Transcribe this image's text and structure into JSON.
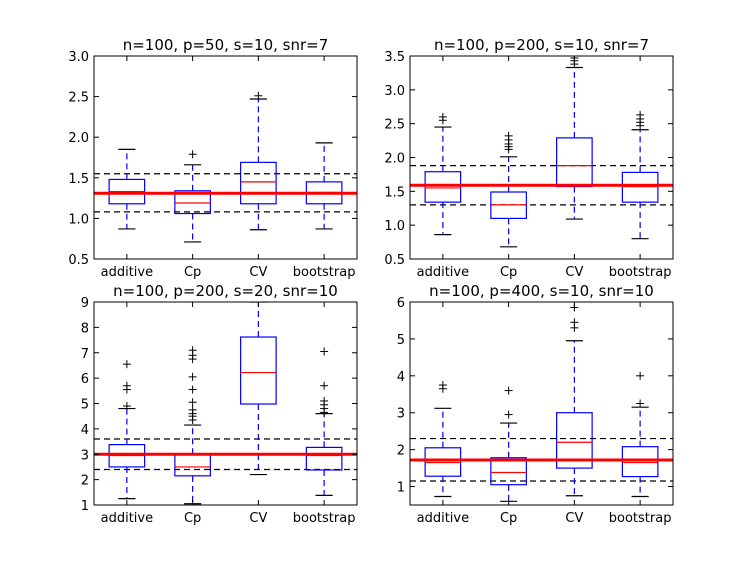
{
  "chart_data": [
    {
      "type": "box",
      "title": "n=100, p=50, s=10, snr=7",
      "categories": [
        "additive",
        "Cp",
        "CV",
        "bootstrap"
      ],
      "ylim": [
        0.5,
        3.0
      ],
      "yticks": [
        "0.5",
        "1.0",
        "1.5",
        "2.0",
        "2.5",
        "3.0"
      ],
      "ytick_values": [
        0.5,
        1.0,
        1.5,
        2.0,
        2.5,
        3.0
      ],
      "reference_line": 1.31,
      "band": [
        1.08,
        1.55
      ],
      "boxes": [
        {
          "q1": 1.18,
          "median": 1.33,
          "q3": 1.48,
          "whisker_low": 0.87,
          "whisker_high": 1.85,
          "outliers": []
        },
        {
          "q1": 1.06,
          "median": 1.19,
          "q3": 1.34,
          "whisker_low": 0.71,
          "whisker_high": 1.66,
          "outliers": [
            1.79
          ]
        },
        {
          "q1": 1.18,
          "median": 1.45,
          "q3": 1.69,
          "whisker_low": 0.86,
          "whisker_high": 2.47,
          "outliers": [
            2.51
          ]
        },
        {
          "q1": 1.18,
          "median": 1.32,
          "q3": 1.45,
          "whisker_low": 0.87,
          "whisker_high": 1.93,
          "outliers": []
        }
      ]
    },
    {
      "type": "box",
      "title": "n=100, p=200, s=10, snr=7",
      "categories": [
        "additive",
        "Cp",
        "CV",
        "bootstrap"
      ],
      "ylim": [
        0.5,
        3.5
      ],
      "yticks": [
        "0.5",
        "1.0",
        "1.5",
        "2.0",
        "2.5",
        "3.0",
        "3.5"
      ],
      "ytick_values": [
        0.5,
        1.0,
        1.5,
        2.0,
        2.5,
        3.0,
        3.5
      ],
      "reference_line": 1.59,
      "band": [
        1.3,
        1.88
      ],
      "boxes": [
        {
          "q1": 1.34,
          "median": 1.55,
          "q3": 1.79,
          "whisker_low": 0.86,
          "whisker_high": 2.45,
          "outliers": [
            2.55,
            2.6
          ]
        },
        {
          "q1": 1.1,
          "median": 1.3,
          "q3": 1.49,
          "whisker_low": 0.68,
          "whisker_high": 2.01,
          "outliers": [
            2.12,
            2.16,
            2.2,
            2.26,
            2.32
          ]
        },
        {
          "q1": 1.57,
          "median": 1.88,
          "q3": 2.29,
          "whisker_low": 1.09,
          "whisker_high": 3.33,
          "outliers": [
            3.38,
            3.43,
            3.47
          ]
        },
        {
          "q1": 1.34,
          "median": 1.57,
          "q3": 1.78,
          "whisker_low": 0.8,
          "whisker_high": 2.41,
          "outliers": [
            2.47,
            2.52,
            2.57,
            2.63
          ]
        }
      ]
    },
    {
      "type": "box",
      "title": "n=100, p=200, s=20, snr=10",
      "categories": [
        "additive",
        "Cp",
        "CV",
        "bootstrap"
      ],
      "ylim": [
        1,
        9
      ],
      "yticks": [
        "1",
        "2",
        "3",
        "4",
        "5",
        "6",
        "7",
        "8",
        "9"
      ],
      "ytick_values": [
        1,
        2,
        3,
        4,
        5,
        6,
        7,
        8,
        9
      ],
      "reference_line": 3.0,
      "band": [
        2.4,
        3.6
      ],
      "boxes": [
        {
          "q1": 2.5,
          "median": 2.95,
          "q3": 3.38,
          "whisker_low": 1.25,
          "whisker_high": 4.8,
          "outliers": [
            4.9,
            5.55,
            5.7,
            6.55
          ]
        },
        {
          "q1": 2.15,
          "median": 2.5,
          "q3": 3.0,
          "whisker_low": 1.05,
          "whisker_high": 4.15,
          "outliers": [
            4.35,
            4.5,
            4.6,
            4.75,
            5.05,
            5.55,
            6.05,
            6.75,
            6.9,
            7.1
          ]
        },
        {
          "q1": 4.98,
          "median": 6.22,
          "q3": 7.62,
          "whisker_low": 2.2,
          "whisker_high": 9.0,
          "outliers": []
        },
        {
          "q1": 2.38,
          "median": 2.95,
          "q3": 3.27,
          "whisker_low": 1.38,
          "whisker_high": 4.6,
          "outliers": [
            4.65,
            4.8,
            4.95,
            5.1,
            5.7,
            7.05
          ]
        }
      ]
    },
    {
      "type": "box",
      "title": "n=100, p=400, s=10, snr=10",
      "categories": [
        "additive",
        "Cp",
        "CV",
        "bootstrap"
      ],
      "ylim": [
        0.5,
        6
      ],
      "yticks": [
        "1",
        "2",
        "3",
        "4",
        "5",
        "6"
      ],
      "ytick_values": [
        1,
        2,
        3,
        4,
        5,
        6
      ],
      "reference_line": 1.72,
      "band": [
        1.15,
        2.3
      ],
      "boxes": [
        {
          "q1": 1.28,
          "median": 1.65,
          "q3": 2.05,
          "whisker_low": 0.73,
          "whisker_high": 3.12,
          "outliers": [
            3.65,
            3.75
          ]
        },
        {
          "q1": 1.05,
          "median": 1.38,
          "q3": 1.78,
          "whisker_low": 0.6,
          "whisker_high": 2.72,
          "outliers": [
            2.95,
            3.6
          ]
        },
        {
          "q1": 1.5,
          "median": 2.2,
          "q3": 3.0,
          "whisker_low": 0.75,
          "whisker_high": 4.95,
          "outliers": [
            5.3,
            5.45,
            5.85
          ]
        },
        {
          "q1": 1.27,
          "median": 1.65,
          "q3": 2.08,
          "whisker_low": 0.73,
          "whisker_high": 3.15,
          "outliers": [
            3.25,
            4.0
          ]
        }
      ]
    }
  ]
}
